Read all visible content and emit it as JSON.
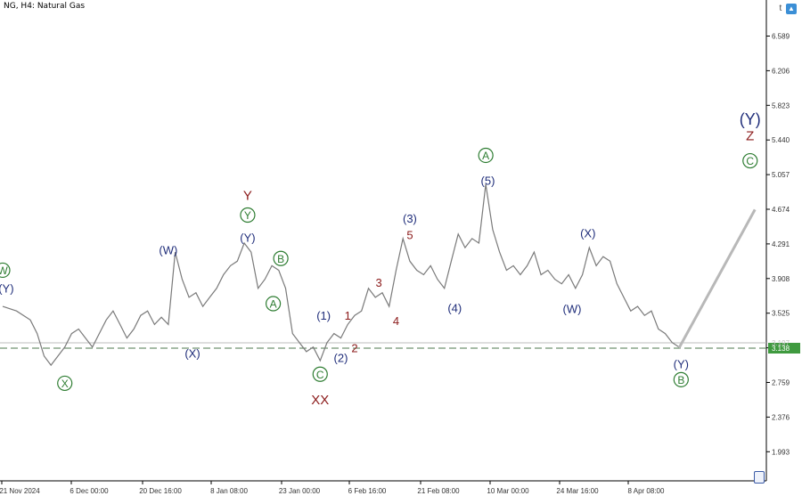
{
  "header": {
    "symbol": "NG, H4:  Natural Gas",
    "corner_text": "t"
  },
  "chart_data": {
    "type": "line",
    "title": "",
    "xlabel": "",
    "ylabel": "",
    "ylim": [
      1.65,
      6.75
    ],
    "y_ticks": [
      "6.589",
      "6.206",
      "5.823",
      "5.440",
      "5.057",
      "4.674",
      "4.291",
      "3.908",
      "3.525",
      "3.142",
      "2.759",
      "2.376",
      "1.993"
    ],
    "x_ticks": [
      "21 Nov 2024",
      "6 Dec 00:00",
      "20 Dec 16:00",
      "8 Jan 08:00",
      "23 Jan 00:00",
      "6 Feb 16:00",
      "21 Feb 08:00",
      "10 Mar 00:00",
      "24 Mar 16:00",
      "8 Apr 08:00"
    ],
    "current_price": "3.138",
    "upper_line_value": "3.197",
    "price_path": [
      [
        0,
        3.6
      ],
      [
        2,
        3.55
      ],
      [
        4,
        3.45
      ],
      [
        5,
        3.3
      ],
      [
        6,
        3.05
      ],
      [
        7,
        2.95
      ],
      [
        8,
        3.05
      ],
      [
        9,
        3.15
      ],
      [
        10,
        3.3
      ],
      [
        11,
        3.35
      ],
      [
        12,
        3.25
      ],
      [
        13,
        3.15
      ],
      [
        14,
        3.3
      ],
      [
        15,
        3.45
      ],
      [
        16,
        3.55
      ],
      [
        17,
        3.4
      ],
      [
        18,
        3.25
      ],
      [
        19,
        3.35
      ],
      [
        20,
        3.5
      ],
      [
        21,
        3.55
      ],
      [
        22,
        3.4
      ],
      [
        23,
        3.48
      ],
      [
        24,
        3.4
      ],
      [
        25,
        4.2
      ],
      [
        26,
        3.9
      ],
      [
        27,
        3.7
      ],
      [
        28,
        3.75
      ],
      [
        29,
        3.6
      ],
      [
        30,
        3.7
      ],
      [
        31,
        3.8
      ],
      [
        32,
        3.95
      ],
      [
        33,
        4.05
      ],
      [
        34,
        4.1
      ],
      [
        35,
        4.3
      ],
      [
        36,
        4.2
      ],
      [
        37,
        3.8
      ],
      [
        38,
        3.9
      ],
      [
        39,
        4.05
      ],
      [
        40,
        4.0
      ],
      [
        41,
        3.8
      ],
      [
        42,
        3.3
      ],
      [
        43,
        3.2
      ],
      [
        44,
        3.1
      ],
      [
        45,
        3.15
      ],
      [
        46,
        3.0
      ],
      [
        47,
        3.2
      ],
      [
        48,
        3.3
      ],
      [
        49,
        3.25
      ],
      [
        50,
        3.4
      ],
      [
        51,
        3.5
      ],
      [
        52,
        3.55
      ],
      [
        53,
        3.8
      ],
      [
        54,
        3.7
      ],
      [
        55,
        3.75
      ],
      [
        56,
        3.6
      ],
      [
        57,
        4.0
      ],
      [
        58,
        4.35
      ],
      [
        59,
        4.1
      ],
      [
        60,
        4.0
      ],
      [
        61,
        3.95
      ],
      [
        62,
        4.05
      ],
      [
        63,
        3.9
      ],
      [
        64,
        3.8
      ],
      [
        65,
        4.1
      ],
      [
        66,
        4.4
      ],
      [
        67,
        4.25
      ],
      [
        68,
        4.35
      ],
      [
        69,
        4.3
      ],
      [
        70,
        4.95
      ],
      [
        71,
        4.45
      ],
      [
        72,
        4.2
      ],
      [
        73,
        4.0
      ],
      [
        74,
        4.05
      ],
      [
        75,
        3.95
      ],
      [
        76,
        4.05
      ],
      [
        77,
        4.2
      ],
      [
        78,
        3.95
      ],
      [
        79,
        4.0
      ],
      [
        80,
        3.9
      ],
      [
        81,
        3.85
      ],
      [
        82,
        3.95
      ],
      [
        83,
        3.8
      ],
      [
        84,
        3.95
      ],
      [
        85,
        4.25
      ],
      [
        86,
        4.05
      ],
      [
        87,
        4.15
      ],
      [
        88,
        4.1
      ],
      [
        89,
        3.85
      ],
      [
        90,
        3.7
      ],
      [
        91,
        3.55
      ],
      [
        92,
        3.6
      ],
      [
        93,
        3.5
      ],
      [
        94,
        3.55
      ],
      [
        95,
        3.35
      ],
      [
        96,
        3.3
      ],
      [
        97,
        3.2
      ],
      [
        98,
        3.15
      ]
    ],
    "path_x_range": [
      0,
      98
    ],
    "forecast": [
      [
        98,
        3.14
      ],
      [
        109,
        4.67
      ]
    ],
    "wave_labels": [
      {
        "text": "W",
        "circled": true,
        "color": "#2e7d32",
        "at": [
          0.0,
          4.0
        ]
      },
      {
        "text": "(Y)",
        "circled": false,
        "color": "#1f2d7a",
        "at": [
          0.5,
          3.8
        ]
      },
      {
        "text": "X",
        "circled": true,
        "color": "#2e7d32",
        "at": [
          9,
          2.75
        ]
      },
      {
        "text": "(W)",
        "circled": false,
        "color": "#1f2d7a",
        "at": [
          24,
          4.22
        ]
      },
      {
        "text": "(X)",
        "circled": false,
        "color": "#1f2d7a",
        "at": [
          27.5,
          3.08
        ]
      },
      {
        "text": "Y",
        "circled": false,
        "color": "#8b1a1a",
        "at": [
          35.5,
          4.83
        ]
      },
      {
        "text": "Y",
        "circled": true,
        "color": "#2e7d32",
        "at": [
          35.5,
          4.61
        ]
      },
      {
        "text": "(Y)",
        "circled": false,
        "color": "#1f2d7a",
        "at": [
          35.5,
          4.36
        ]
      },
      {
        "text": "B",
        "circled": true,
        "color": "#2e7d32",
        "at": [
          40.3,
          4.13
        ]
      },
      {
        "text": "A",
        "circled": true,
        "color": "#2e7d32",
        "at": [
          39.2,
          3.63
        ]
      },
      {
        "text": "C",
        "circled": true,
        "color": "#2e7d32",
        "at": [
          46,
          2.85
        ]
      },
      {
        "text": "XX",
        "circled": false,
        "color": "#8b1a1a",
        "at": [
          46,
          2.57
        ]
      },
      {
        "text": "(1)",
        "circled": false,
        "color": "#1f2d7a",
        "at": [
          46.5,
          3.5
        ]
      },
      {
        "text": "(2)",
        "circled": false,
        "color": "#1f2d7a",
        "at": [
          49,
          3.03
        ]
      },
      {
        "text": "1",
        "circled": false,
        "color": "#8b1a1a",
        "at": [
          50,
          3.5
        ]
      },
      {
        "text": "2",
        "circled": false,
        "color": "#8b1a1a",
        "at": [
          51,
          3.14
        ]
      },
      {
        "text": "3",
        "circled": false,
        "color": "#8b1a1a",
        "at": [
          54.5,
          3.86
        ]
      },
      {
        "text": "4",
        "circled": false,
        "color": "#8b1a1a",
        "at": [
          57,
          3.44
        ]
      },
      {
        "text": "(3)",
        "circled": false,
        "color": "#1f2d7a",
        "at": [
          59,
          4.57
        ]
      },
      {
        "text": "5",
        "circled": false,
        "color": "#8b1a1a",
        "at": [
          59,
          4.39
        ]
      },
      {
        "text": "(4)",
        "circled": false,
        "color": "#1f2d7a",
        "at": [
          65.5,
          3.58
        ]
      },
      {
        "text": "A",
        "circled": true,
        "color": "#2e7d32",
        "at": [
          70,
          5.27
        ]
      },
      {
        "text": "(5)",
        "circled": false,
        "color": "#1f2d7a",
        "at": [
          70.3,
          4.99
        ]
      },
      {
        "text": "(X)",
        "circled": false,
        "color": "#1f2d7a",
        "at": [
          84.8,
          4.41
        ]
      },
      {
        "text": "(W)",
        "circled": false,
        "color": "#1f2d7a",
        "at": [
          82.5,
          3.57
        ]
      },
      {
        "text": "(Y)",
        "circled": false,
        "color": "#1f2d7a",
        "at": [
          98.3,
          2.96
        ]
      },
      {
        "text": "B",
        "circled": true,
        "color": "#2e7d32",
        "at": [
          98.3,
          2.79
        ]
      },
      {
        "text": "(Y)",
        "circled": false,
        "color": "#1f2d7a",
        "at": [
          108.3,
          5.67
        ]
      },
      {
        "text": "Z",
        "circled": false,
        "color": "#8b1a1a",
        "at": [
          108.3,
          5.49
        ]
      },
      {
        "text": "C",
        "circled": true,
        "color": "#2e7d32",
        "at": [
          108.3,
          5.21
        ]
      }
    ],
    "colors": {
      "price": "#7a7a7a",
      "forecast": "#b8b8b8",
      "dashed_line": "#4f7a4f",
      "price_tag_bg": "#3f9a3f",
      "upper_line": "#bdbdbd",
      "axis_text": "#333333"
    },
    "grid": false
  }
}
